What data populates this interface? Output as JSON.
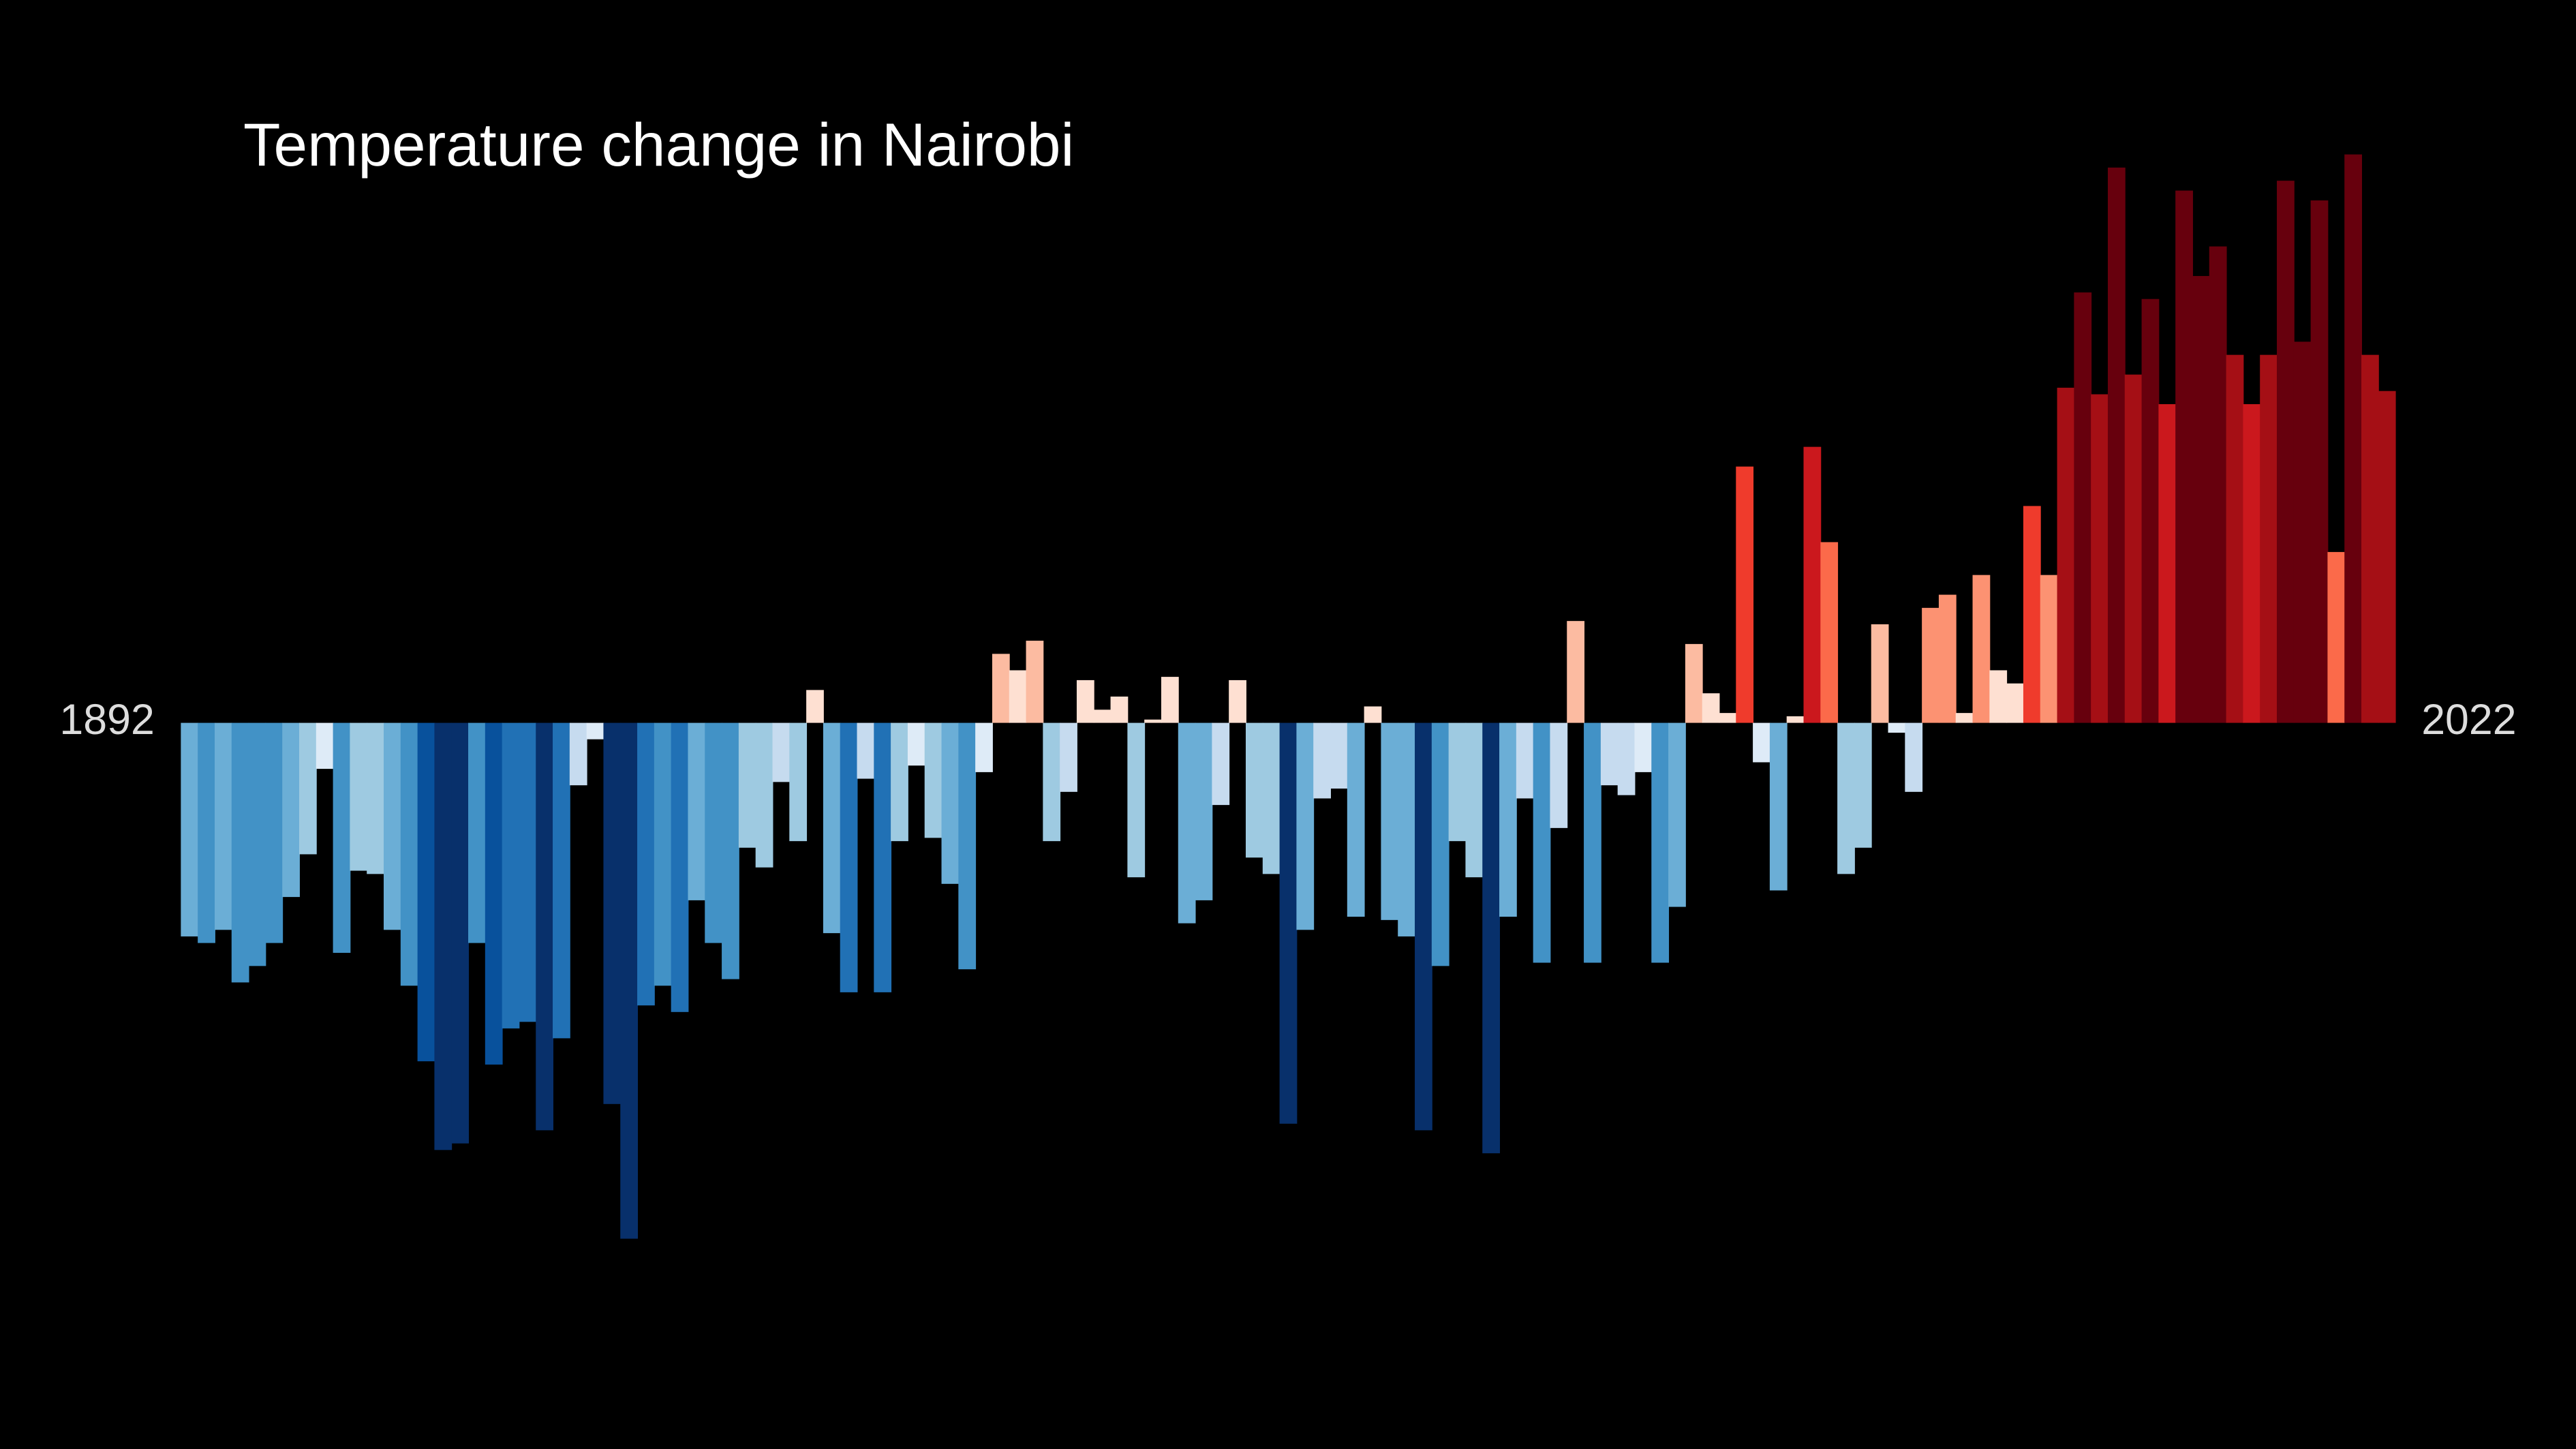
{
  "chart_data": {
    "type": "bar",
    "title": "Temperature change in Nairobi",
    "categories": [
      1892,
      null,
      null,
      null,
      null,
      null,
      null,
      null,
      null,
      null,
      null,
      null,
      null,
      null,
      null,
      null,
      null,
      null,
      null,
      null,
      null,
      null,
      null,
      null,
      null,
      null,
      null,
      null,
      null,
      null,
      null,
      null,
      null,
      null,
      null,
      null,
      null,
      null,
      null,
      null,
      null,
      null,
      null,
      null,
      null,
      null,
      null,
      null,
      null,
      null,
      null,
      null,
      null,
      null,
      null,
      null,
      null,
      null,
      null,
      null,
      null,
      null,
      null,
      null,
      null,
      null,
      null,
      null,
      null,
      null,
      null,
      null,
      null,
      null,
      null,
      null,
      null,
      null,
      null,
      null,
      null,
      null,
      null,
      null,
      null,
      null,
      null,
      null,
      null,
      null,
      null,
      null,
      null,
      null,
      null,
      null,
      null,
      null,
      null,
      null,
      null,
      null,
      null,
      null,
      null,
      null,
      null,
      null,
      null,
      null,
      null,
      null,
      null,
      null,
      null,
      null,
      null,
      null,
      null,
      null,
      null,
      null,
      null,
      null,
      null,
      null,
      null,
      null,
      null,
      null,
      2022
    ],
    "values": [
      -0.65,
      -0.67,
      -0.63,
      -0.79,
      -0.74,
      -0.67,
      -0.53,
      -0.4,
      -0.14,
      -0.7,
      -0.45,
      -0.46,
      -0.63,
      -0.8,
      -1.03,
      -1.3,
      -1.28,
      -0.67,
      -1.04,
      -0.93,
      -0.91,
      -1.24,
      -0.96,
      -0.19,
      -0.05,
      -1.16,
      -1.57,
      -0.86,
      -0.8,
      -0.88,
      -0.54,
      -0.67,
      -0.78,
      -0.38,
      -0.44,
      -0.18,
      -0.36,
      0.1,
      -0.64,
      -0.82,
      -0.17,
      -0.82,
      -0.36,
      -0.13,
      -0.35,
      -0.49,
      -0.75,
      -0.15,
      0.21,
      0.16,
      0.25,
      -0.36,
      -0.21,
      0.13,
      0.04,
      0.08,
      -0.47,
      0.01,
      0.14,
      -0.61,
      -0.54,
      -0.25,
      0.13,
      -0.41,
      -0.46,
      -1.22,
      -0.63,
      -0.23,
      -0.2,
      -0.59,
      0.05,
      -0.6,
      -0.65,
      -1.24,
      -0.74,
      -0.36,
      -0.47,
      -1.31,
      -0.59,
      -0.23,
      -0.73,
      -0.32,
      0.31,
      -0.73,
      -0.19,
      -0.22,
      -0.15,
      -0.73,
      -0.56,
      0.24,
      0.09,
      0.03,
      0.78,
      -0.12,
      -0.51,
      0.02,
      0.84,
      0.55,
      -0.46,
      -0.38,
      0.3,
      -0.03,
      -0.21,
      0.35,
      0.39,
      0.03,
      0.45,
      0.16,
      0.12,
      0.66,
      0.45,
      1.02,
      1.31,
      1.0,
      1.69,
      1.06,
      1.29,
      0.97,
      1.62,
      1.36,
      1.45,
      1.12,
      0.97,
      1.12,
      1.65,
      1.16,
      1.59,
      0.52,
      1.73,
      1.12,
      1.01
    ],
    "ylim": [
      -2.2,
      2.2
    ],
    "clim": [
      -1.3,
      1.3
    ],
    "colors": [
      "#08306b",
      "#08519c",
      "#2171b5",
      "#4292c6",
      "#6baed6",
      "#9ecae1",
      "#c6dbef",
      "#deebf7",
      "#fee0d2",
      "#fcbba1",
      "#fc9272",
      "#fb6a4a",
      "#ef3b2c",
      "#cb181d",
      "#a50f15",
      "#67000d"
    ],
    "grid": false
  }
}
